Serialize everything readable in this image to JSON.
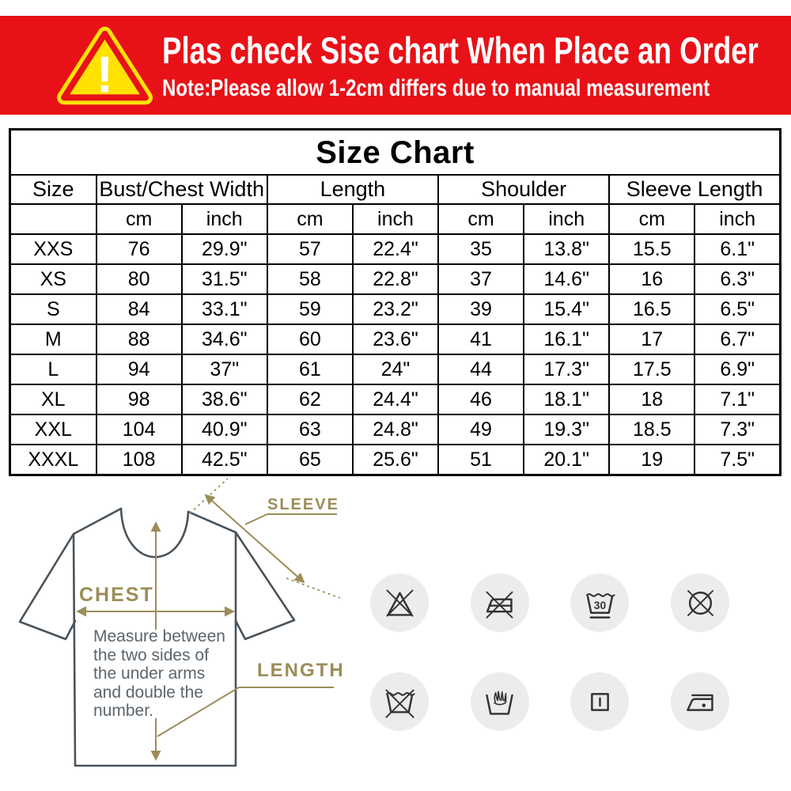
{
  "banner": {
    "title": "Plas check Sise chart When Place an Order",
    "note": "Note:Please allow 1-2cm differs due to manual measurement",
    "exclamation": "!",
    "bg_color": "#e81117",
    "triangle_color": "#ffe204"
  },
  "size_chart": {
    "title": "Size Chart",
    "group_headers": [
      "Size",
      "Bust/Chest Width",
      "Length",
      "Shoulder",
      "Sleeve Length"
    ],
    "unit_headers": [
      "",
      "cm",
      "inch",
      "cm",
      "inch",
      "cm",
      "inch",
      "cm",
      "inch"
    ],
    "rows": [
      [
        "XXS",
        "76",
        "29.9\"",
        "57",
        "22.4\"",
        "35",
        "13.8\"",
        "15.5",
        "6.1\""
      ],
      [
        "XS",
        "80",
        "31.5\"",
        "58",
        "22.8\"",
        "37",
        "14.6\"",
        "16",
        "6.3\""
      ],
      [
        "S",
        "84",
        "33.1\"",
        "59",
        "23.2\"",
        "39",
        "15.4\"",
        "16.5",
        "6.5\""
      ],
      [
        "M",
        "88",
        "34.6\"",
        "60",
        "23.6\"",
        "41",
        "16.1\"",
        "17",
        "6.7\""
      ],
      [
        "L",
        "94",
        "37\"",
        "61",
        "24\"",
        "44",
        "17.3\"",
        "17.5",
        "6.9\""
      ],
      [
        "XL",
        "98",
        "38.6\"",
        "62",
        "24.4\"",
        "46",
        "18.1\"",
        "18",
        "7.1\""
      ],
      [
        "XXL",
        "104",
        "40.9\"",
        "63",
        "24.8\"",
        "49",
        "19.3\"",
        "18.5",
        "7.3\""
      ],
      [
        "XXXL",
        "108",
        "42.5\"",
        "65",
        "25.6\"",
        "51",
        "20.1\"",
        "19",
        "7.5\""
      ]
    ]
  },
  "chart_data": {
    "type": "table",
    "title": "Size Chart",
    "columns": [
      "Size",
      "Bust/Chest Width cm",
      "Bust/Chest Width inch",
      "Length cm",
      "Length inch",
      "Shoulder cm",
      "Shoulder inch",
      "Sleeve Length cm",
      "Sleeve Length inch"
    ],
    "rows": [
      [
        "XXS",
        "76",
        "29.9\"",
        "57",
        "22.4\"",
        "35",
        "13.8\"",
        "15.5",
        "6.1\""
      ],
      [
        "XS",
        "80",
        "31.5\"",
        "58",
        "22.8\"",
        "37",
        "14.6\"",
        "16",
        "6.3\""
      ],
      [
        "S",
        "84",
        "33.1\"",
        "59",
        "23.2\"",
        "39",
        "15.4\"",
        "16.5",
        "6.5\""
      ],
      [
        "M",
        "88",
        "34.6\"",
        "60",
        "23.6\"",
        "41",
        "16.1\"",
        "17",
        "6.7\""
      ],
      [
        "L",
        "94",
        "37\"",
        "61",
        "24\"",
        "44",
        "17.3\"",
        "17.5",
        "6.9\""
      ],
      [
        "XL",
        "98",
        "38.6\"",
        "62",
        "24.4\"",
        "46",
        "18.1\"",
        "18",
        "7.1\""
      ],
      [
        "XXL",
        "104",
        "40.9\"",
        "63",
        "24.8\"",
        "49",
        "19.3\"",
        "18.5",
        "7.3\""
      ],
      [
        "XXXL",
        "108",
        "42.5\"",
        "65",
        "25.6\"",
        "51",
        "20.1\"",
        "19",
        "7.5\""
      ]
    ]
  },
  "diagram": {
    "sleeve_label": "SLEEVE",
    "chest_label": "CHEST",
    "length_label": "LENGTH",
    "note": "Measure between\nthe two sides of\nthe under arms\nand double the\nnumber.",
    "outline_color": "#49545c",
    "arrow_color": "#9c8d58"
  },
  "care": {
    "wash_temp_label": "30",
    "circle_bg": "#ececec",
    "icons": [
      "do-not-bleach",
      "do-not-iron",
      "machine-wash-30",
      "do-not-tumble-dry",
      "do-not-wash",
      "hand-wash",
      "drip-dry",
      "iron-low-heat"
    ]
  }
}
